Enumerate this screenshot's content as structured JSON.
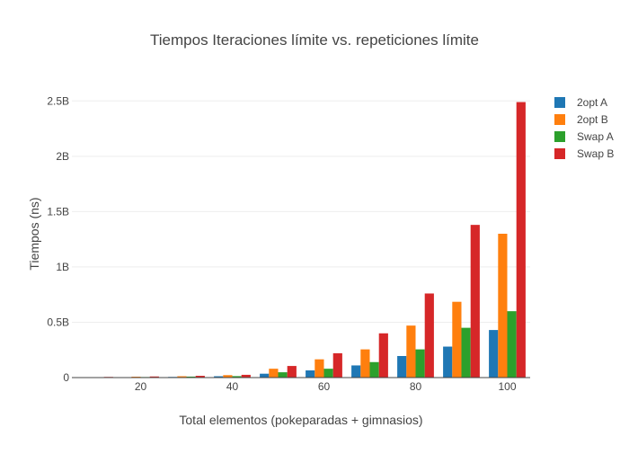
{
  "chart_data": {
    "type": "bar",
    "title": "Tiempos Iteraciones límite vs. repeticiones límite",
    "xlabel": "Total elementos (pokeparadas + gimnasios)",
    "ylabel": "Tiempos (ns)",
    "x": [
      10,
      20,
      30,
      40,
      50,
      60,
      70,
      80,
      90,
      100
    ],
    "x_ticks": [
      20,
      40,
      60,
      80,
      100
    ],
    "x_tick_labels": [
      "20",
      "40",
      "60",
      "80",
      "100"
    ],
    "xlim": [
      5,
      105
    ],
    "ylim": [
      0,
      2.6
    ],
    "y_ticks": [
      0,
      0.5,
      1,
      1.5,
      2,
      2.5
    ],
    "y_tick_labels": [
      "0",
      "0.5B",
      "1B",
      "1.5B",
      "2B",
      "2.5B"
    ],
    "y_unit_note": "B = 1e9",
    "grid": true,
    "legend_position": "top-right",
    "series": [
      {
        "name": "2opt A",
        "color": "#1f77b4",
        "values": [
          0.003,
          0.004,
          0.006,
          0.012,
          0.035,
          0.065,
          0.11,
          0.195,
          0.28,
          0.43
        ]
      },
      {
        "name": "2opt B",
        "color": "#ff7f0e",
        "values": [
          0.004,
          0.008,
          0.012,
          0.022,
          0.08,
          0.165,
          0.255,
          0.47,
          0.685,
          1.3
        ]
      },
      {
        "name": "Swap A",
        "color": "#2ca02c",
        "values": [
          0.002,
          0.005,
          0.009,
          0.013,
          0.048,
          0.08,
          0.14,
          0.255,
          0.45,
          0.6
        ]
      },
      {
        "name": "Swap B",
        "color": "#d62728",
        "values": [
          0.006,
          0.01,
          0.016,
          0.025,
          0.105,
          0.22,
          0.4,
          0.76,
          1.38,
          2.49
        ]
      }
    ]
  }
}
